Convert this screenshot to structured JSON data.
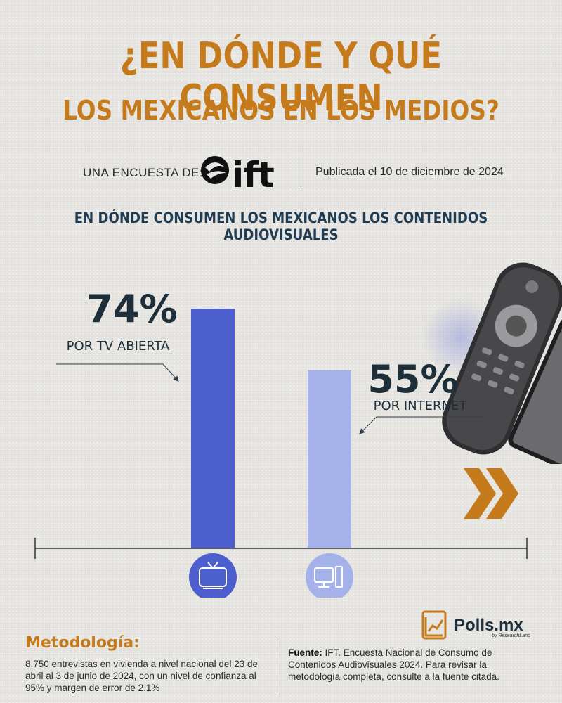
{
  "header": {
    "title_line1": "¿EN DÓNDE Y QUÉ CONSUMEN",
    "title_line2": "LOS MEXICANOS EN LOS MEDIOS?",
    "survey_label": "UNA ENCUESTA DE:",
    "logo_text": "ift",
    "published": "Publicada el 10 de diciembre de 2024"
  },
  "subtitle": "EN DÓNDE CONSUMEN LOS MEXICANOS LOS CONTENIDOS AUDIOVISUALES",
  "chart_data": {
    "type": "bar",
    "title": "EN DÓNDE CONSUMEN LOS MEXICANOS LOS CONTENIDOS AUDIOVISUALES",
    "categories": [
      "POR TV ABIERTA",
      "POR INTERNET"
    ],
    "values": [
      74,
      55
    ],
    "value_labels": [
      "74%",
      "55%"
    ],
    "ylim": [
      0,
      100
    ],
    "grid": false,
    "colors": [
      "#4d5ecf",
      "#a5b2ea"
    ],
    "icons": [
      "tv-icon",
      "computer-icon"
    ]
  },
  "methodology": {
    "title": "Metodología:",
    "text": "8,750 entrevistas en vivienda a nivel nacional del 23 de abril al 3 de junio de 2024, con un nivel de confianza al 95% y margen de error de 2.1%"
  },
  "source": {
    "label": "Fuente:",
    "text": "IFT. Encuesta Nacional de Consumo de Contenidos Audiovisuales 2024. Para revisar la metodología completa, consulte a la fuente citada."
  },
  "brand": {
    "name": "Polls.mx",
    "tagline": "by ResearchLand"
  },
  "colors": {
    "accent": "#c57a1b",
    "navy": "#1f3c52",
    "bar_primary": "#4d5ecf",
    "bar_secondary": "#a5b2ea"
  }
}
